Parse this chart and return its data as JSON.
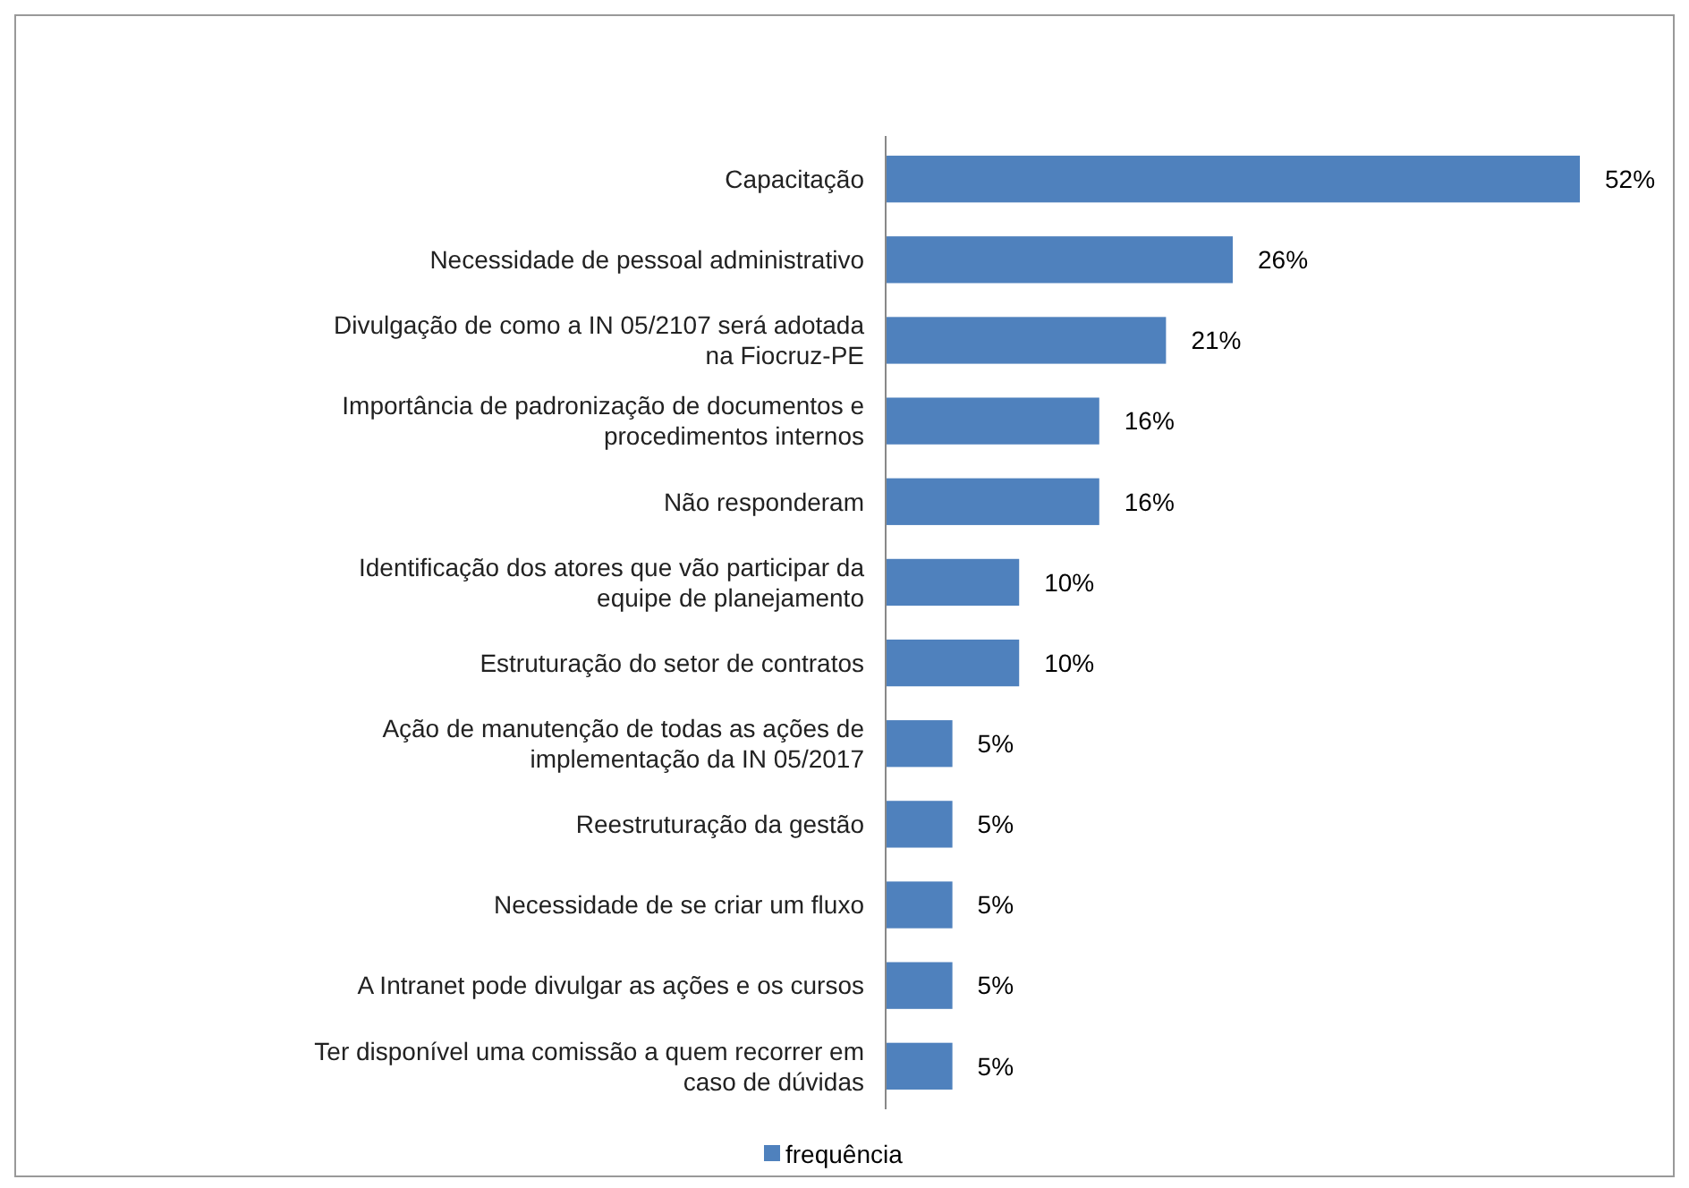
{
  "chart_data": {
    "type": "bar",
    "orientation": "horizontal",
    "categories": [
      "Capacitação",
      "Necessidade de pessoal administrativo",
      "Divulgação de como a IN 05/2107 será adotada na Fiocruz-PE",
      "Importância de padronização de documentos e procedimentos internos",
      "Não responderam",
      "Identificação dos atores que vão participar da equipe de planejamento",
      "Estruturação do setor de contratos",
      "Ação de manutenção de todas as ações de implementação da IN 05/2017",
      "Reestruturação da gestão",
      "Necessidade de se criar um fluxo",
      "A Intranet pode divulgar as ações e os cursos",
      "Ter disponível uma comissão a quem recorrer em caso de dúvidas"
    ],
    "series": [
      {
        "name": "frequência",
        "color": "#4f81bd",
        "values": [
          52,
          26,
          21,
          16,
          16,
          10,
          10,
          5,
          5,
          5,
          5,
          5
        ],
        "value_labels": [
          "52%",
          "26%",
          "21%",
          "16%",
          "16%",
          "10%",
          "10%",
          "5%",
          "5%",
          "5%",
          "5%",
          "5%"
        ]
      }
    ],
    "legend": "bottom"
  }
}
